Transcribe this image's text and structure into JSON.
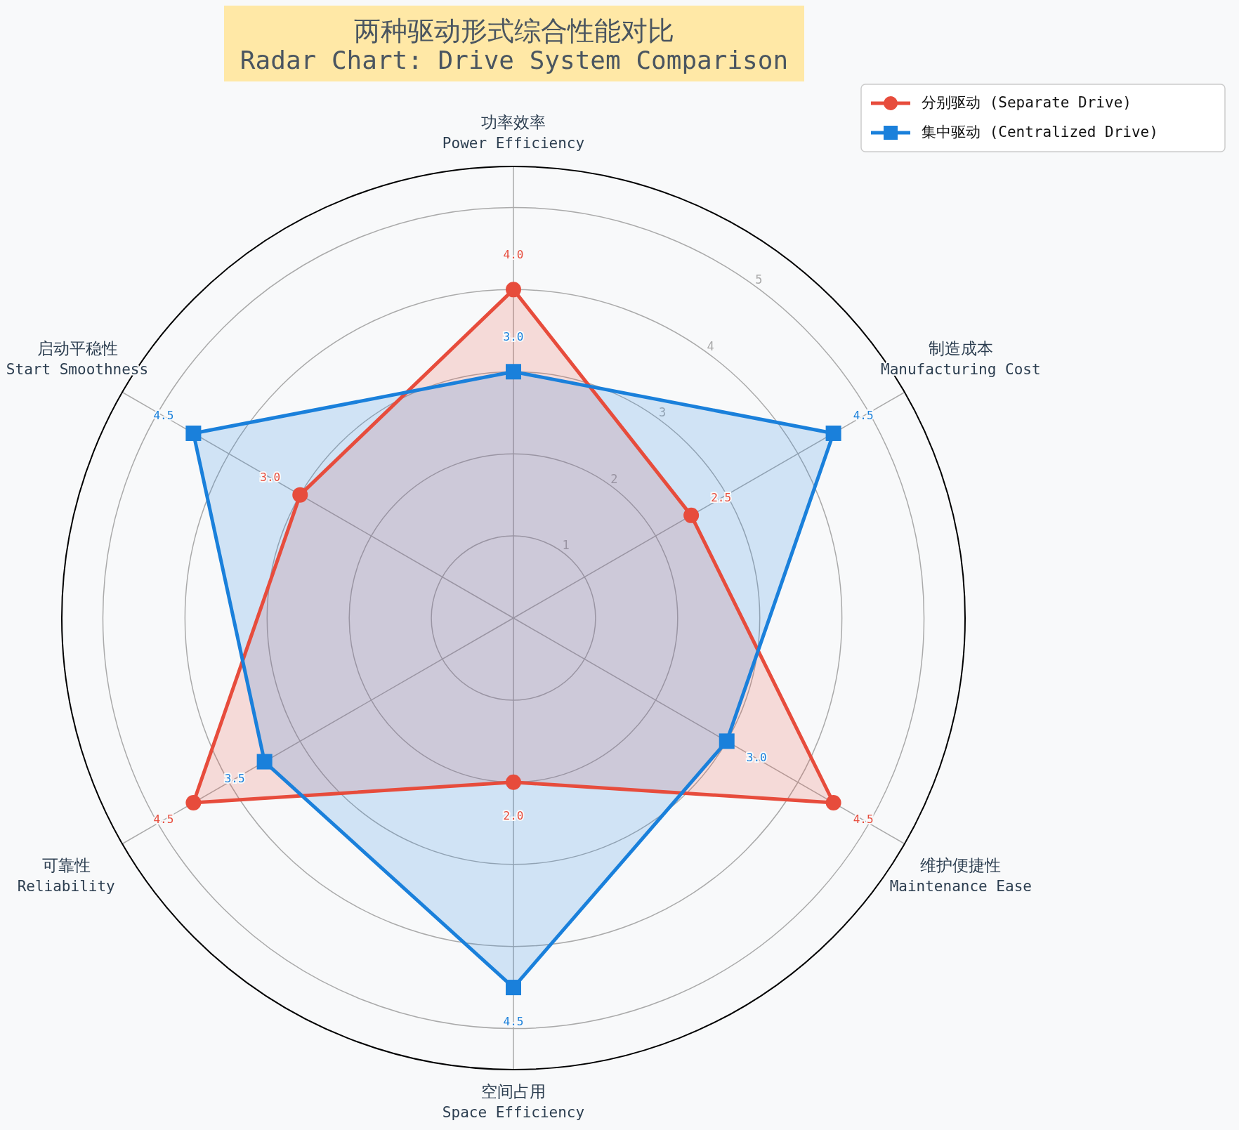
{
  "chart_data": {
    "type": "radar",
    "title": "两种驱动形式综合性能对比",
    "subtitle": "Radar Chart: Drive System Comparison",
    "categories": [
      "功率效率\nPower Efficiency",
      "制造成本\nManufacturing Cost",
      "维护便捷性\nMaintenance Ease",
      "空间占用\nSpace Efficiency",
      "可靠性\nReliability",
      "启动平稳性\nStart Smoothness"
    ],
    "series": [
      {
        "name": "分别驱动 (Separate Drive)",
        "color": "#e74c3c",
        "marker": "circle",
        "values": [
          4.0,
          2.5,
          4.5,
          2.0,
          4.5,
          3.0
        ],
        "value_labels": [
          "4.0",
          "2.5",
          "4.5",
          "2.0",
          "4.5",
          "3.0"
        ]
      },
      {
        "name": "集中驱动 (Centralized Drive)",
        "color": "#1a80db",
        "marker": "square",
        "values": [
          3.0,
          4.5,
          3.0,
          4.5,
          3.5,
          4.5
        ],
        "value_labels": [
          "3.0",
          "4.5",
          "3.0",
          "4.5",
          "3.5",
          "4.5"
        ]
      }
    ],
    "ylim": [
      0,
      5.5
    ],
    "yticks": [
      1,
      2,
      3,
      4,
      5
    ],
    "grid": true,
    "legend": "top right"
  }
}
